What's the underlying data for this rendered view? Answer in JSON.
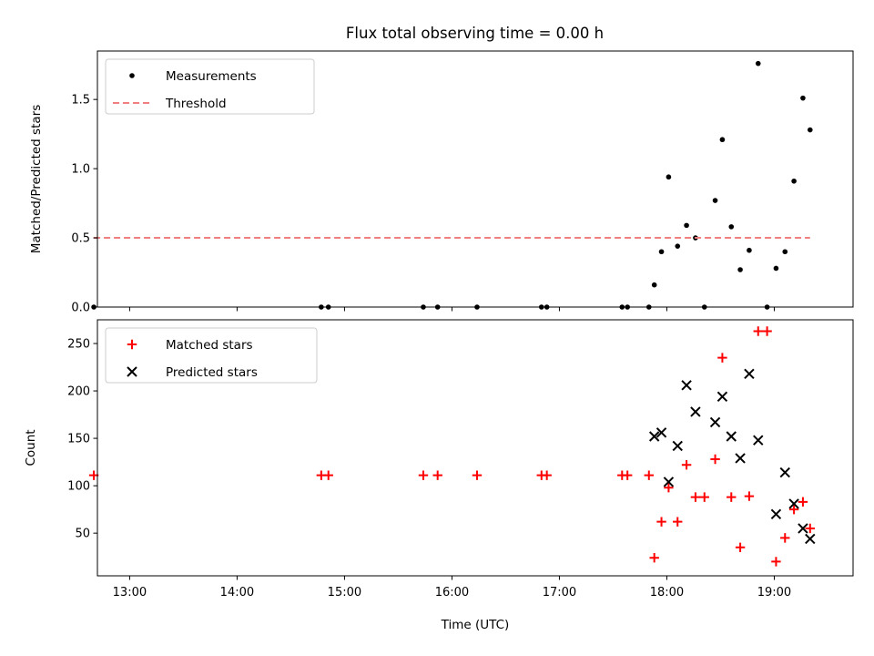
{
  "chart_data": [
    {
      "type": "scatter",
      "title": "Flux total observing time = 0.00 h",
      "xlabel": "",
      "ylabel": "Matched/Predicted stars",
      "xlim": [
        "12:42",
        "19:44"
      ],
      "ylim": [
        0,
        1.85
      ],
      "yticks": [
        "0.0",
        "0.5",
        "1.0",
        "1.5"
      ],
      "grid": false,
      "legend_position": "upper left",
      "series": [
        {
          "name": "Measurements",
          "marker": "dot",
          "color": "#000000",
          "points": [
            {
              "x": "12:40",
              "y": 0.0
            },
            {
              "x": "14:47",
              "y": 0.0
            },
            {
              "x": "14:51",
              "y": 0.0
            },
            {
              "x": "15:44",
              "y": 0.0
            },
            {
              "x": "15:52",
              "y": 0.0
            },
            {
              "x": "16:14",
              "y": 0.0
            },
            {
              "x": "16:50",
              "y": 0.0
            },
            {
              "x": "16:53",
              "y": 0.0
            },
            {
              "x": "17:35",
              "y": 0.0
            },
            {
              "x": "17:38",
              "y": 0.0
            },
            {
              "x": "17:50",
              "y": 0.0
            },
            {
              "x": "17:53",
              "y": 0.16
            },
            {
              "x": "17:57",
              "y": 0.4
            },
            {
              "x": "18:01",
              "y": 0.94
            },
            {
              "x": "18:06",
              "y": 0.44
            },
            {
              "x": "18:11",
              "y": 0.59
            },
            {
              "x": "18:16",
              "y": 0.5
            },
            {
              "x": "18:21",
              "y": 0.0
            },
            {
              "x": "18:27",
              "y": 0.77
            },
            {
              "x": "18:31",
              "y": 1.21
            },
            {
              "x": "18:36",
              "y": 0.58
            },
            {
              "x": "18:41",
              "y": 0.27
            },
            {
              "x": "18:46",
              "y": 0.41
            },
            {
              "x": "18:51",
              "y": 1.76
            },
            {
              "x": "18:56",
              "y": 0.0
            },
            {
              "x": "19:01",
              "y": 0.28
            },
            {
              "x": "19:06",
              "y": 0.4
            },
            {
              "x": "19:11",
              "y": 0.91
            },
            {
              "x": "19:16",
              "y": 1.51
            },
            {
              "x": "19:20",
              "y": 1.28
            }
          ]
        },
        {
          "name": "Threshold",
          "marker": "dashed-line",
          "color": "#f08080",
          "points": [
            {
              "x": "12:40",
              "y": 0.5
            },
            {
              "x": "19:20",
              "y": 0.5
            }
          ]
        }
      ]
    },
    {
      "type": "scatter",
      "title": "",
      "xlabel": "Time (UTC)",
      "ylabel": "Count",
      "xlim": [
        "12:42",
        "19:44"
      ],
      "ylim": [
        5,
        275
      ],
      "xticks": [
        "13:00",
        "14:00",
        "15:00",
        "16:00",
        "17:00",
        "18:00",
        "19:00"
      ],
      "yticks": [
        "50",
        "100",
        "150",
        "200",
        "250"
      ],
      "grid": false,
      "legend_position": "upper left",
      "series": [
        {
          "name": "Matched stars",
          "marker": "plus",
          "color": "#ff0000",
          "points": [
            {
              "x": "12:40",
              "y": 111
            },
            {
              "x": "14:47",
              "y": 111
            },
            {
              "x": "14:51",
              "y": 111
            },
            {
              "x": "15:44",
              "y": 111
            },
            {
              "x": "15:52",
              "y": 111
            },
            {
              "x": "16:14",
              "y": 111
            },
            {
              "x": "16:50",
              "y": 111
            },
            {
              "x": "16:53",
              "y": 111
            },
            {
              "x": "17:35",
              "y": 111
            },
            {
              "x": "17:38",
              "y": 111
            },
            {
              "x": "17:50",
              "y": 111
            },
            {
              "x": "17:53",
              "y": 24
            },
            {
              "x": "17:57",
              "y": 62
            },
            {
              "x": "18:01",
              "y": 98
            },
            {
              "x": "18:06",
              "y": 62
            },
            {
              "x": "18:11",
              "y": 122
            },
            {
              "x": "18:16",
              "y": 88
            },
            {
              "x": "18:21",
              "y": 88
            },
            {
              "x": "18:27",
              "y": 128
            },
            {
              "x": "18:31",
              "y": 235
            },
            {
              "x": "18:36",
              "y": 88
            },
            {
              "x": "18:41",
              "y": 35
            },
            {
              "x": "18:46",
              "y": 89
            },
            {
              "x": "18:51",
              "y": 263
            },
            {
              "x": "18:56",
              "y": 263
            },
            {
              "x": "19:01",
              "y": 20
            },
            {
              "x": "19:06",
              "y": 45
            },
            {
              "x": "19:11",
              "y": 75
            },
            {
              "x": "19:16",
              "y": 83
            },
            {
              "x": "19:20",
              "y": 55
            }
          ]
        },
        {
          "name": "Predicted stars",
          "marker": "x",
          "color": "#000000",
          "points": [
            {
              "x": "17:53",
              "y": 152
            },
            {
              "x": "17:57",
              "y": 156
            },
            {
              "x": "18:01",
              "y": 104
            },
            {
              "x": "18:06",
              "y": 142
            },
            {
              "x": "18:11",
              "y": 206
            },
            {
              "x": "18:16",
              "y": 178
            },
            {
              "x": "18:27",
              "y": 167
            },
            {
              "x": "18:31",
              "y": 194
            },
            {
              "x": "18:36",
              "y": 152
            },
            {
              "x": "18:41",
              "y": 129
            },
            {
              "x": "18:46",
              "y": 218
            },
            {
              "x": "18:51",
              "y": 148
            },
            {
              "x": "19:01",
              "y": 70
            },
            {
              "x": "19:06",
              "y": 114
            },
            {
              "x": "19:11",
              "y": 81
            },
            {
              "x": "19:16",
              "y": 55
            },
            {
              "x": "19:20",
              "y": 44
            }
          ]
        }
      ]
    }
  ]
}
